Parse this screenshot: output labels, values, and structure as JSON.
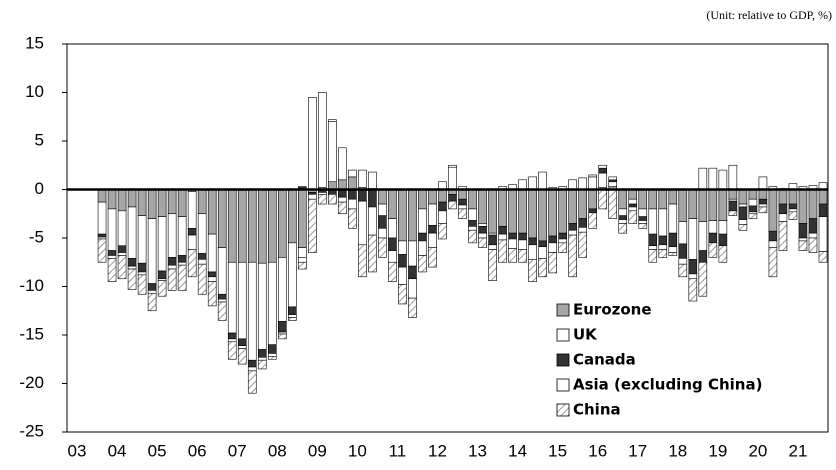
{
  "chart_data": {
    "type": "stacked_bar",
    "subtitle": "(Unit: relative to GDP, %)",
    "categories": [
      "03",
      null,
      null,
      null,
      "04",
      null,
      null,
      null,
      "05",
      null,
      null,
      null,
      "06",
      null,
      null,
      null,
      "07",
      null,
      null,
      null,
      "08",
      null,
      null,
      null,
      "09",
      null,
      null,
      null,
      "10",
      null,
      null,
      null,
      "11",
      null,
      null,
      null,
      "12",
      null,
      null,
      null,
      "13",
      null,
      null,
      null,
      "14",
      null,
      null,
      null,
      "15",
      null,
      null,
      null,
      "16",
      null,
      null,
      null,
      "17",
      null,
      null,
      null,
      "18",
      null,
      null,
      null,
      "19",
      null,
      null,
      null,
      "20",
      null,
      null,
      null,
      "21",
      null,
      null,
      null
    ],
    "series": [
      {
        "name": "Eurozone",
        "color": "#a6a6a6",
        "values": [
          null,
          null,
          null,
          -1.3,
          -2.0,
          -2.2,
          -1.8,
          -2.7,
          -3.0,
          -2.8,
          -2.5,
          -2.8,
          -0.2,
          -2.5,
          -4.6,
          -6.0,
          -7.5,
          -7.5,
          -7.5,
          -7.6,
          -7.5,
          -7.0,
          -5.5,
          -6.0,
          -0.3,
          0.2,
          0.8,
          1.0,
          1.3,
          0.2,
          0.1,
          -1.5,
          -3.0,
          -5.3,
          -5.3,
          -2.0,
          -1.5,
          -1.3,
          -0.5,
          -1.0,
          -2.0,
          -3.5,
          -4.5,
          -3.8,
          -4.5,
          -4.5,
          -5.0,
          -5.3,
          -4.8,
          -4.5,
          -3.5,
          -3.0,
          -2.0,
          0.2,
          0.3,
          -2.0,
          -1.0,
          -2.0,
          -2.0,
          -2.0,
          -1.5,
          -3.3,
          -3.0,
          -3.3,
          -3.2,
          -3.2,
          -1.0,
          -1.5,
          -1.0,
          -1.0,
          -4.3,
          -1.5,
          -1.5,
          -3.5,
          -3.0,
          -1.5
        ]
      },
      {
        "name": "UK",
        "color": "#ffffff",
        "values": [
          null,
          null,
          null,
          -3.3,
          -4.3,
          -3.6,
          -5.3,
          -4.9,
          -6.7,
          -5.6,
          -4.5,
          -4.0,
          -3.8,
          -4.1,
          -3.9,
          -4.8,
          -7.3,
          -7.9,
          -10.1,
          -8.9,
          -8.5,
          -6.6,
          -6.6,
          -1.0,
          9.5,
          9.8,
          6.2,
          3.3,
          0.7,
          1.8,
          1.7,
          -1.2,
          -2.0,
          -1.4,
          -2.6,
          -2.5,
          -2.2,
          0.8,
          2.3,
          0.3,
          -1.2,
          -0.3,
          -0.2,
          0.3,
          0.5,
          1.0,
          1.3,
          1.8,
          0.2,
          0.3,
          1.0,
          1.2,
          1.3,
          1.5,
          0.5,
          -0.7,
          -0.5,
          -0.8,
          -2.6,
          -2.8,
          -3.0,
          -2.3,
          -4.2,
          -3.0,
          -1.3,
          -1.4,
          -0.2,
          -0.3,
          -0.7,
          1.3,
          0.3,
          0.1,
          0.6,
          0.3,
          0.4,
          0.7
        ]
      },
      {
        "name": "Canada",
        "color": "#333333",
        "values": [
          null,
          null,
          null,
          -0.3,
          -0.5,
          -0.7,
          -0.8,
          -0.9,
          -0.7,
          -0.8,
          -0.8,
          -0.7,
          -0.7,
          -0.6,
          -0.5,
          -0.5,
          -0.6,
          -0.7,
          -0.7,
          -0.8,
          -0.9,
          -1.1,
          -0.8,
          0.3,
          -0.2,
          -0.3,
          -0.5,
          -0.8,
          -1.0,
          -1.2,
          -1.8,
          -1.3,
          -1.3,
          -1.3,
          -1.3,
          -0.8,
          -0.8,
          -0.9,
          -0.7,
          -0.6,
          -0.6,
          -0.7,
          -1.0,
          -0.8,
          -0.6,
          -0.7,
          -0.7,
          -0.6,
          -0.7,
          -0.6,
          -0.7,
          -0.9,
          -0.4,
          0.5,
          0.2,
          -0.4,
          -0.3,
          -0.4,
          -1.2,
          -0.9,
          -1.4,
          -1.5,
          -1.5,
          -1.2,
          -1.0,
          -1.2,
          -1.0,
          -1.3,
          -0.6,
          -0.5,
          -1.0,
          -1.0,
          -0.5,
          -1.5,
          -1.5,
          -1.3
        ]
      },
      {
        "name": "Asia (excluding China)",
        "color": "#ffffff",
        "values": [
          null,
          null,
          null,
          -0.2,
          -0.3,
          -0.3,
          -0.3,
          -0.3,
          -0.3,
          -0.2,
          -0.4,
          -0.3,
          -1.5,
          -0.5,
          -0.5,
          -0.3,
          -0.3,
          -0.3,
          -0.4,
          -0.3,
          -0.3,
          -0.2,
          -0.3,
          -0.5,
          -0.5,
          -0.2,
          0.2,
          -0.5,
          -1.0,
          -4.5,
          -2.9,
          -1.0,
          -1.2,
          -1.8,
          -2.0,
          -1.5,
          -1.5,
          -1.3,
          0.2,
          -0.4,
          -0.4,
          -0.5,
          -0.5,
          -0.6,
          -1.0,
          -1.0,
          -1.5,
          -1.2,
          -1.0,
          -0.4,
          -0.5,
          -0.5,
          0.2,
          0.3,
          0.3,
          -0.4,
          -0.4,
          -0.3,
          -0.4,
          -0.5,
          -0.6,
          -0.6,
          -0.5,
          2.2,
          2.2,
          2.0,
          2.5,
          -0.5,
          -0.2,
          -0.3,
          -0.7,
          -0.8,
          -0.3,
          -0.3,
          -0.5,
          -3.6
        ]
      },
      {
        "name": "China",
        "color": "#bfbfbf",
        "hatch": true,
        "values": [
          null,
          null,
          null,
          -2.4,
          -2.4,
          -2.4,
          -2.1,
          -2.0,
          -1.8,
          -1.6,
          -2.2,
          -2.6,
          -2.8,
          -3.1,
          -2.5,
          -1.9,
          -1.8,
          -1.6,
          -2.3,
          -0.9,
          -0.3,
          -0.5,
          -0.3,
          -0.7,
          -5.5,
          -1.0,
          -1.0,
          -1.2,
          -2.0,
          -3.3,
          -3.8,
          -2.0,
          -2.0,
          -2.0,
          -2.0,
          -1.7,
          -2.0,
          -1.6,
          -0.8,
          -1.0,
          -1.3,
          -1.0,
          -3.2,
          -2.3,
          -1.4,
          -1.3,
          -2.3,
          -1.9,
          -2.1,
          -1.0,
          -4.3,
          -2.6,
          -1.6,
          -2.0,
          -3.0,
          -1.0,
          -1.3,
          -0.5,
          -1.3,
          -0.8,
          -0.3,
          -1.3,
          -2.3,
          -3.5,
          -1.5,
          -1.7,
          -0.5,
          -0.6,
          -0.5,
          -0.6,
          -3.0,
          -3.0,
          -0.8,
          -1.0,
          -1.5,
          -1.1
        ]
      }
    ],
    "ylim": [
      -25,
      15
    ],
    "yticks": [
      -25,
      -20,
      -15,
      -10,
      -5,
      0,
      5,
      10,
      15
    ],
    "grid": false,
    "legend": "lower right"
  }
}
